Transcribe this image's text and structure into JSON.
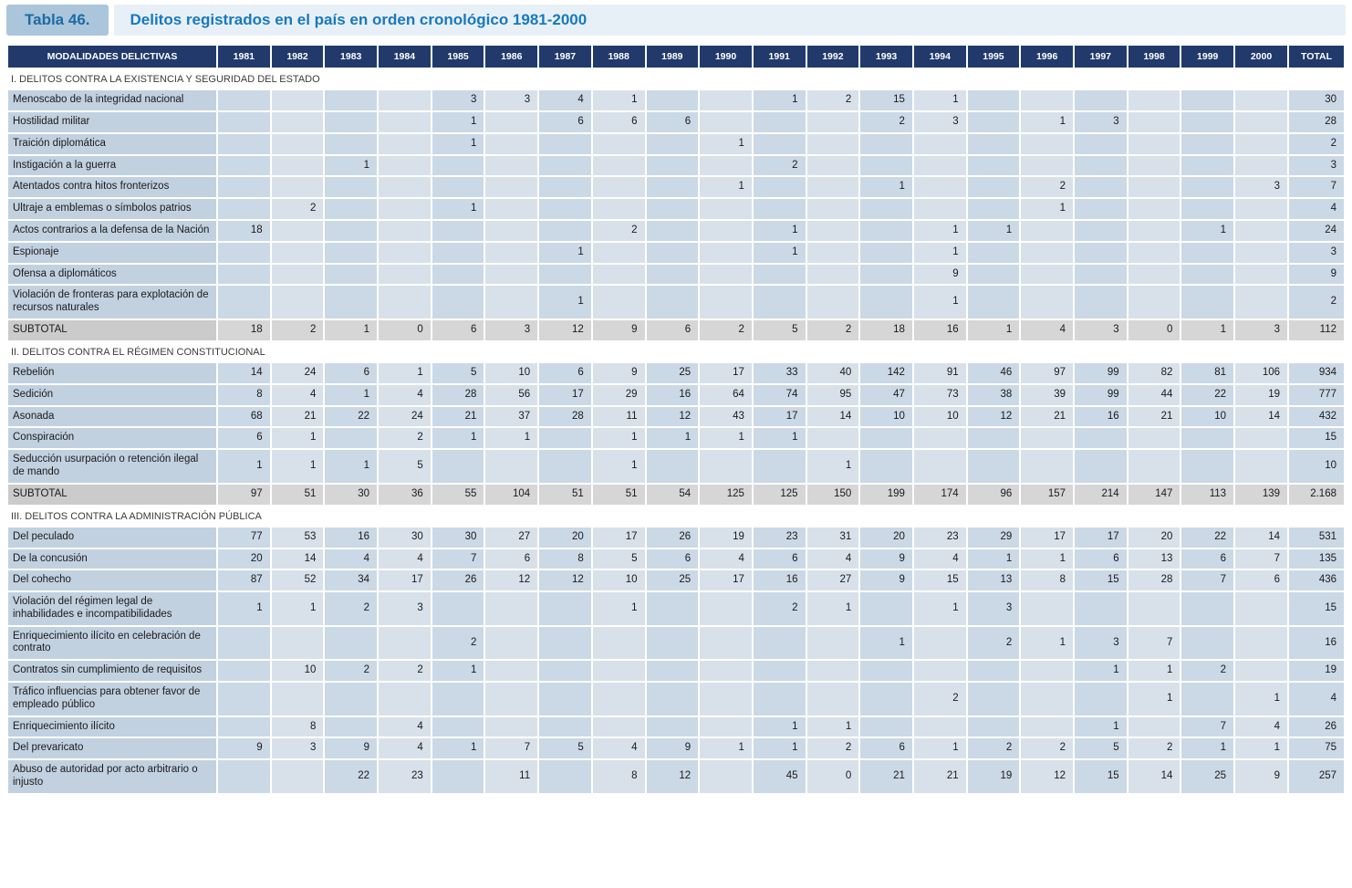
{
  "title": {
    "label": "Tabla 46.",
    "text": "Delitos registrados en el país en orden cronológico 1981-2000"
  },
  "table": {
    "header": [
      "MODALIDADES DELICTIVAS",
      "1981",
      "1982",
      "1983",
      "1984",
      "1985",
      "1986",
      "1987",
      "1988",
      "1989",
      "1990",
      "1991",
      "1992",
      "1993",
      "1994",
      "1995",
      "1996",
      "1997",
      "1998",
      "1999",
      "2000",
      "TOTAL"
    ],
    "sections": [
      {
        "name": "I. DELITOS CONTRA LA EXISTENCIA Y SEGURIDAD DEL ESTADO",
        "rows": [
          {
            "label": "Menoscabo de la integridad nacional",
            "values": [
              "",
              "",
              "",
              "",
              "3",
              "3",
              "4",
              "1",
              "",
              "",
              "1",
              "2",
              "15",
              "1",
              "",
              "",
              "",
              "",
              "",
              "",
              "30"
            ]
          },
          {
            "label": "Hostilidad militar",
            "values": [
              "",
              "",
              "",
              "",
              "1",
              "",
              "6",
              "6",
              "6",
              "",
              "",
              "",
              "2",
              "3",
              "",
              "1",
              "3",
              "",
              "",
              "",
              "28"
            ]
          },
          {
            "label": "Traición diplomática",
            "values": [
              "",
              "",
              "",
              "",
              "1",
              "",
              "",
              "",
              "",
              "1",
              "",
              "",
              "",
              "",
              "",
              "",
              "",
              "",
              "",
              "",
              "2"
            ]
          },
          {
            "label": "Instigación a la guerra",
            "values": [
              "",
              "",
              "1",
              "",
              "",
              "",
              "",
              "",
              "",
              "",
              "2",
              "",
              "",
              "",
              "",
              "",
              "",
              "",
              "",
              "",
              "3"
            ]
          },
          {
            "label": "Atentados contra hitos fronterizos",
            "values": [
              "",
              "",
              "",
              "",
              "",
              "",
              "",
              "",
              "",
              "1",
              "",
              "",
              "1",
              "",
              "",
              "2",
              "",
              "",
              "",
              "3",
              "7"
            ]
          },
          {
            "label": "Ultraje a emblemas o símbolos patrios",
            "values": [
              "",
              "2",
              "",
              "",
              "1",
              "",
              "",
              "",
              "",
              "",
              "",
              "",
              "",
              "",
              "",
              "1",
              "",
              "",
              "",
              "",
              "4"
            ]
          },
          {
            "label": "Actos contrarios a la defensa de la Nación",
            "values": [
              "18",
              "",
              "",
              "",
              "",
              "",
              "",
              "2",
              "",
              "",
              "1",
              "",
              "",
              "1",
              "1",
              "",
              "",
              "",
              "1",
              "",
              "24"
            ]
          },
          {
            "label": "Espionaje",
            "values": [
              "",
              "",
              "",
              "",
              "",
              "",
              "1",
              "",
              "",
              "",
              "1",
              "",
              "",
              "1",
              "",
              "",
              "",
              "",
              "",
              "",
              "3"
            ]
          },
          {
            "label": "Ofensa a diplomáticos",
            "values": [
              "",
              "",
              "",
              "",
              "",
              "",
              "",
              "",
              "",
              "",
              "",
              "",
              "",
              "9",
              "",
              "",
              "",
              "",
              "",
              "",
              "9"
            ]
          },
          {
            "label": "Violación de fronteras para explotación de recursos naturales",
            "values": [
              "",
              "",
              "",
              "",
              "",
              "",
              "1",
              "",
              "",
              "",
              "",
              "",
              "",
              "1",
              "",
              "",
              "",
              "",
              "",
              "",
              "2"
            ]
          }
        ],
        "subtotal": {
          "label": "SUBTOTAL",
          "values": [
            "18",
            "2",
            "1",
            "0",
            "6",
            "3",
            "12",
            "9",
            "6",
            "2",
            "5",
            "2",
            "18",
            "16",
            "1",
            "4",
            "3",
            "0",
            "1",
            "3",
            "112"
          ]
        }
      },
      {
        "name": "II. DELITOS CONTRA EL RÉGIMEN CONSTITUCIONAL",
        "rows": [
          {
            "label": "Rebelión",
            "values": [
              "14",
              "24",
              "6",
              "1",
              "5",
              "10",
              "6",
              "9",
              "25",
              "17",
              "33",
              "40",
              "142",
              "91",
              "46",
              "97",
              "99",
              "82",
              "81",
              "106",
              "934"
            ]
          },
          {
            "label": "Sedición",
            "values": [
              "8",
              "4",
              "1",
              "4",
              "28",
              "56",
              "17",
              "29",
              "16",
              "64",
              "74",
              "95",
              "47",
              "73",
              "38",
              "39",
              "99",
              "44",
              "22",
              "19",
              "777"
            ]
          },
          {
            "label": "Asonada",
            "values": [
              "68",
              "21",
              "22",
              "24",
              "21",
              "37",
              "28",
              "11",
              "12",
              "43",
              "17",
              "14",
              "10",
              "10",
              "12",
              "21",
              "16",
              "21",
              "10",
              "14",
              "432"
            ]
          },
          {
            "label": "Conspiración",
            "values": [
              "6",
              "1",
              "",
              "2",
              "1",
              "1",
              "",
              "1",
              "1",
              "1",
              "1",
              "",
              "",
              "",
              "",
              "",
              "",
              "",
              "",
              "",
              "15"
            ]
          },
          {
            "label": "Seducción usurpación o retención ilegal de mando",
            "values": [
              "1",
              "1",
              "1",
              "5",
              "",
              "",
              "",
              "1",
              "",
              "",
              "",
              "1",
              "",
              "",
              "",
              "",
              "",
              "",
              "",
              "",
              "10"
            ]
          }
        ],
        "subtotal": {
          "label": "SUBTOTAL",
          "values": [
            "97",
            "51",
            "30",
            "36",
            "55",
            "104",
            "51",
            "51",
            "54",
            "125",
            "125",
            "150",
            "199",
            "174",
            "96",
            "157",
            "214",
            "147",
            "113",
            "139",
            "2.168"
          ]
        }
      },
      {
        "name": "III. DELITOS CONTRA LA ADMINISTRACIÓN PÚBLICA",
        "rows": [
          {
            "label": "Del peculado",
            "values": [
              "77",
              "53",
              "16",
              "30",
              "30",
              "27",
              "20",
              "17",
              "26",
              "19",
              "23",
              "31",
              "20",
              "23",
              "29",
              "17",
              "17",
              "20",
              "22",
              "14",
              "531"
            ]
          },
          {
            "label": "De la concusión",
            "values": [
              "20",
              "14",
              "4",
              "4",
              "7",
              "6",
              "8",
              "5",
              "6",
              "4",
              "6",
              "4",
              "9",
              "4",
              "1",
              "1",
              "6",
              "13",
              "6",
              "7",
              "135"
            ]
          },
          {
            "label": "Del cohecho",
            "values": [
              "87",
              "52",
              "34",
              "17",
              "26",
              "12",
              "12",
              "10",
              "25",
              "17",
              "16",
              "27",
              "9",
              "15",
              "13",
              "8",
              "15",
              "28",
              "7",
              "6",
              "436"
            ]
          },
          {
            "label": "Violación del régimen legal de inhabilidades e incompatibilidades",
            "values": [
              "1",
              "1",
              "2",
              "3",
              "",
              "",
              "",
              "1",
              "",
              "",
              "2",
              "1",
              "",
              "1",
              "3",
              "",
              "",
              "",
              "",
              "",
              "15"
            ]
          },
          {
            "label": "Enriquecimiento ilícito en celebración de contrato",
            "values": [
              "",
              "",
              "",
              "",
              "2",
              "",
              "",
              "",
              "",
              "",
              "",
              "",
              "1",
              "",
              "2",
              "1",
              "3",
              "7",
              "",
              "",
              "16"
            ]
          },
          {
            "label": "Contratos sin cumplimiento de requisitos",
            "values": [
              "",
              "10",
              "2",
              "2",
              "1",
              "",
              "",
              "",
              "",
              "",
              "",
              "",
              "",
              "",
              "",
              "",
              "1",
              "1",
              "2",
              "",
              "19"
            ]
          },
          {
            "label": "Tráfico influencias para obtener favor de empleado público",
            "values": [
              "",
              "",
              "",
              "",
              "",
              "",
              "",
              "",
              "",
              "",
              "",
              "",
              "",
              "2",
              "",
              "",
              "",
              "1",
              "",
              "1",
              "4"
            ]
          },
          {
            "label": "Enriquecimiento ilícito",
            "values": [
              "",
              "8",
              "",
              "4",
              "",
              "",
              "",
              "",
              "",
              "",
              "1",
              "1",
              "",
              "",
              "",
              "",
              "1",
              "",
              "7",
              "4",
              "26"
            ]
          },
          {
            "label": "Del prevaricato",
            "values": [
              "9",
              "3",
              "9",
              "4",
              "1",
              "7",
              "5",
              "4",
              "9",
              "1",
              "1",
              "2",
              "6",
              "1",
              "2",
              "2",
              "5",
              "2",
              "1",
              "1",
              "75"
            ]
          },
          {
            "label": "Abuso de autoridad por acto arbitrario o injusto",
            "values": [
              "",
              "",
              "22",
              "23",
              "",
              "11",
              "",
              "8",
              "12",
              "",
              "45",
              "0",
              "21",
              "21",
              "19",
              "12",
              "15",
              "14",
              "25",
              "9",
              "257"
            ]
          }
        ],
        "subtotal": null
      }
    ]
  }
}
